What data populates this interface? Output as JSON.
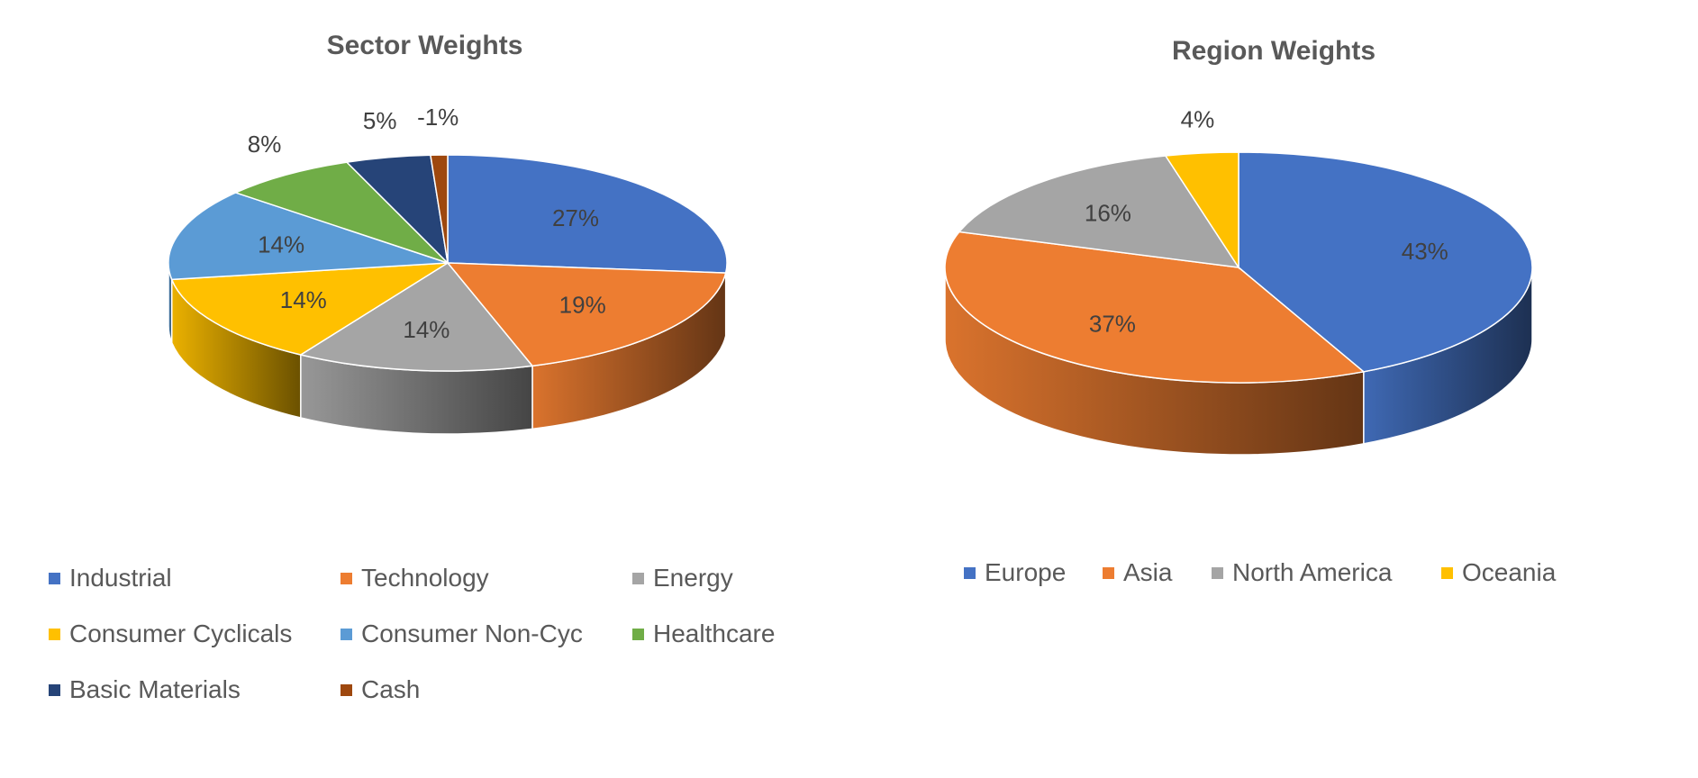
{
  "chart_data": [
    {
      "type": "pie",
      "title": "Sector Weights",
      "categories": [
        "Industrial",
        "Technology",
        "Energy",
        "Consumer Cyclicals",
        "Consumer Non-Cyc",
        "Healthcare",
        "Basic Materials",
        "Cash"
      ],
      "values": [
        27,
        19,
        14,
        14,
        14,
        8,
        5,
        -1
      ],
      "value_labels": [
        "27%",
        "19%",
        "14%",
        "14%",
        "14%",
        "8%",
        "5%",
        "-1%"
      ],
      "colors": [
        "#4472C4",
        "#ED7D31",
        "#A5A5A5",
        "#FFC000",
        "#5B9BD5",
        "#70AD47",
        "#264478",
        "#9E480E"
      ],
      "legend_position": "bottom"
    },
    {
      "type": "pie",
      "title": "Region Weights",
      "categories": [
        "Europe",
        "Asia",
        "North America",
        "Oceania"
      ],
      "values": [
        43,
        37,
        16,
        4
      ],
      "value_labels": [
        "43%",
        "37%",
        "16%",
        "4%"
      ],
      "colors": [
        "#4472C4",
        "#ED7D31",
        "#A5A5A5",
        "#FFC000"
      ],
      "legend_position": "bottom"
    }
  ]
}
